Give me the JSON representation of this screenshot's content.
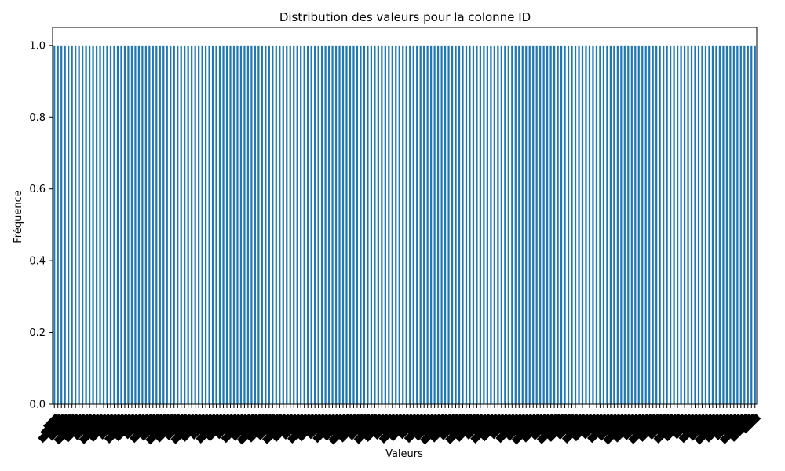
{
  "chart_data": {
    "type": "bar",
    "title": "Distribution des valeurs pour la colonne ID",
    "xlabel": "Valeurs",
    "ylabel": "Fréquence",
    "ylim": [
      0,
      1.05
    ],
    "yticks": [
      0.0,
      0.2,
      0.4,
      0.6,
      0.8,
      1.0
    ],
    "ytick_labels": [
      "0.0",
      "0.2",
      "0.4",
      "0.6",
      "0.8",
      "1.0"
    ],
    "bar_color": "#1f77b4",
    "category_count": 200,
    "value_per_category": 1.0,
    "xtick_rotation_deg": 45,
    "grid": false,
    "legend": "none"
  }
}
